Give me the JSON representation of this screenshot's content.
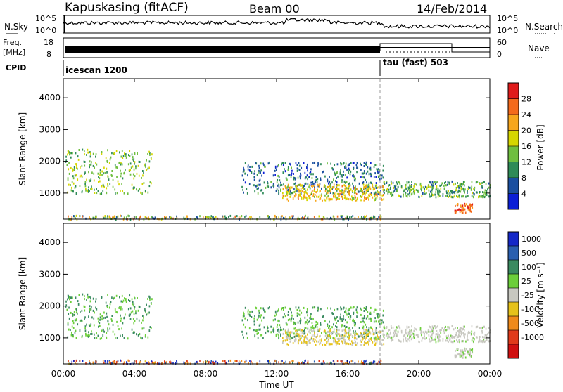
{
  "header": {
    "station": "Kapuskasing (fitACF)",
    "beam": "Beam 00",
    "date": "14/Feb/2014"
  },
  "noise_panel": {
    "left_label": "N.Sky",
    "right_label": "N.Search",
    "left_ticks": [
      "10^5",
      "10^0"
    ],
    "right_ticks": [
      "10^5",
      "10^0"
    ]
  },
  "freq_panel": {
    "left_label_1": "Freq.",
    "left_label_2": "[MHz]",
    "right_label": "Nave",
    "left_ticks": [
      "18",
      "8"
    ],
    "right_ticks": [
      "60",
      "0"
    ],
    "freq_mhz": 12.0,
    "nave_before_1800": 23,
    "nave_1800_2200": 54,
    "nave_after_2200": 14
  },
  "cpid": {
    "label": "CPID",
    "segments": [
      {
        "name": "icescan 1200",
        "start_hour": 0.0,
        "end_hour": 18.0
      },
      {
        "name": "tau (fast) 503",
        "start_hour": 18.0,
        "end_hour": 24.0
      }
    ]
  },
  "x_axis": {
    "label": "Time UT",
    "ticks": [
      "00:00",
      "04:00",
      "08:00",
      "12:00",
      "16:00",
      "20:00",
      "00:00"
    ],
    "range_hours": [
      0,
      24
    ]
  },
  "power_panel": {
    "ylabel": "Slant Range [km]",
    "y_ticks": [
      "1000",
      "2000",
      "3000",
      "4000"
    ],
    "colorbar_label": "Power [dB]",
    "colorbar_ticks": [
      "4",
      "8",
      "12",
      "16",
      "20",
      "24",
      "28"
    ],
    "colors": [
      "#0b1fd6",
      "#1a4fa0",
      "#2e8b57",
      "#6fbf3f",
      "#d6d600",
      "#f7a61c",
      "#f46a1b",
      "#e01b1b"
    ]
  },
  "velocity_panel": {
    "ylabel": "Slant Range [km]",
    "y_ticks": [
      "1000",
      "2000",
      "3000",
      "4000"
    ],
    "colorbar_label": "Velocity [m s⁻¹]",
    "colorbar_ticks": [
      "1000",
      "500",
      "100",
      "25",
      "-25",
      "-100",
      "-500",
      "-1000"
    ],
    "colors": [
      "#1428c8",
      "#2a5fb0",
      "#3a8a60",
      "#6ccf3a",
      "#c8c8c0",
      "#e6c21a",
      "#f08a1a",
      "#e03a1a",
      "#d01010"
    ]
  },
  "chart_data": {
    "type": "heatmap",
    "title": "Kapuskasing (fitACF)",
    "subtitle": "Beam 00",
    "xlabel": "Time UT",
    "ylabel": "Slant Range [km]",
    "xlim_hours": [
      0,
      24
    ],
    "ylim_km": [
      180,
      4600
    ],
    "scatter_regions": [
      {
        "t0": 0.1,
        "t1": 5.0,
        "r0": 1000,
        "r1": 2400,
        "power_db": 14,
        "velocity": 25
      },
      {
        "t0": 10.0,
        "t1": 18.0,
        "r0": 1000,
        "r1": 2000,
        "power_db": 8,
        "velocity": 25
      },
      {
        "t0": 12.3,
        "t1": 18.0,
        "r0": 800,
        "r1": 1300,
        "power_db": 20,
        "velocity": -25
      },
      {
        "t0": 18.0,
        "t1": 24.0,
        "r0": 900,
        "r1": 1400,
        "power_db": 12,
        "velocity": 0
      },
      {
        "t0": 22.0,
        "t1": 23.0,
        "r0": 400,
        "r1": 700,
        "power_db": 26,
        "velocity": 0
      }
    ]
  }
}
